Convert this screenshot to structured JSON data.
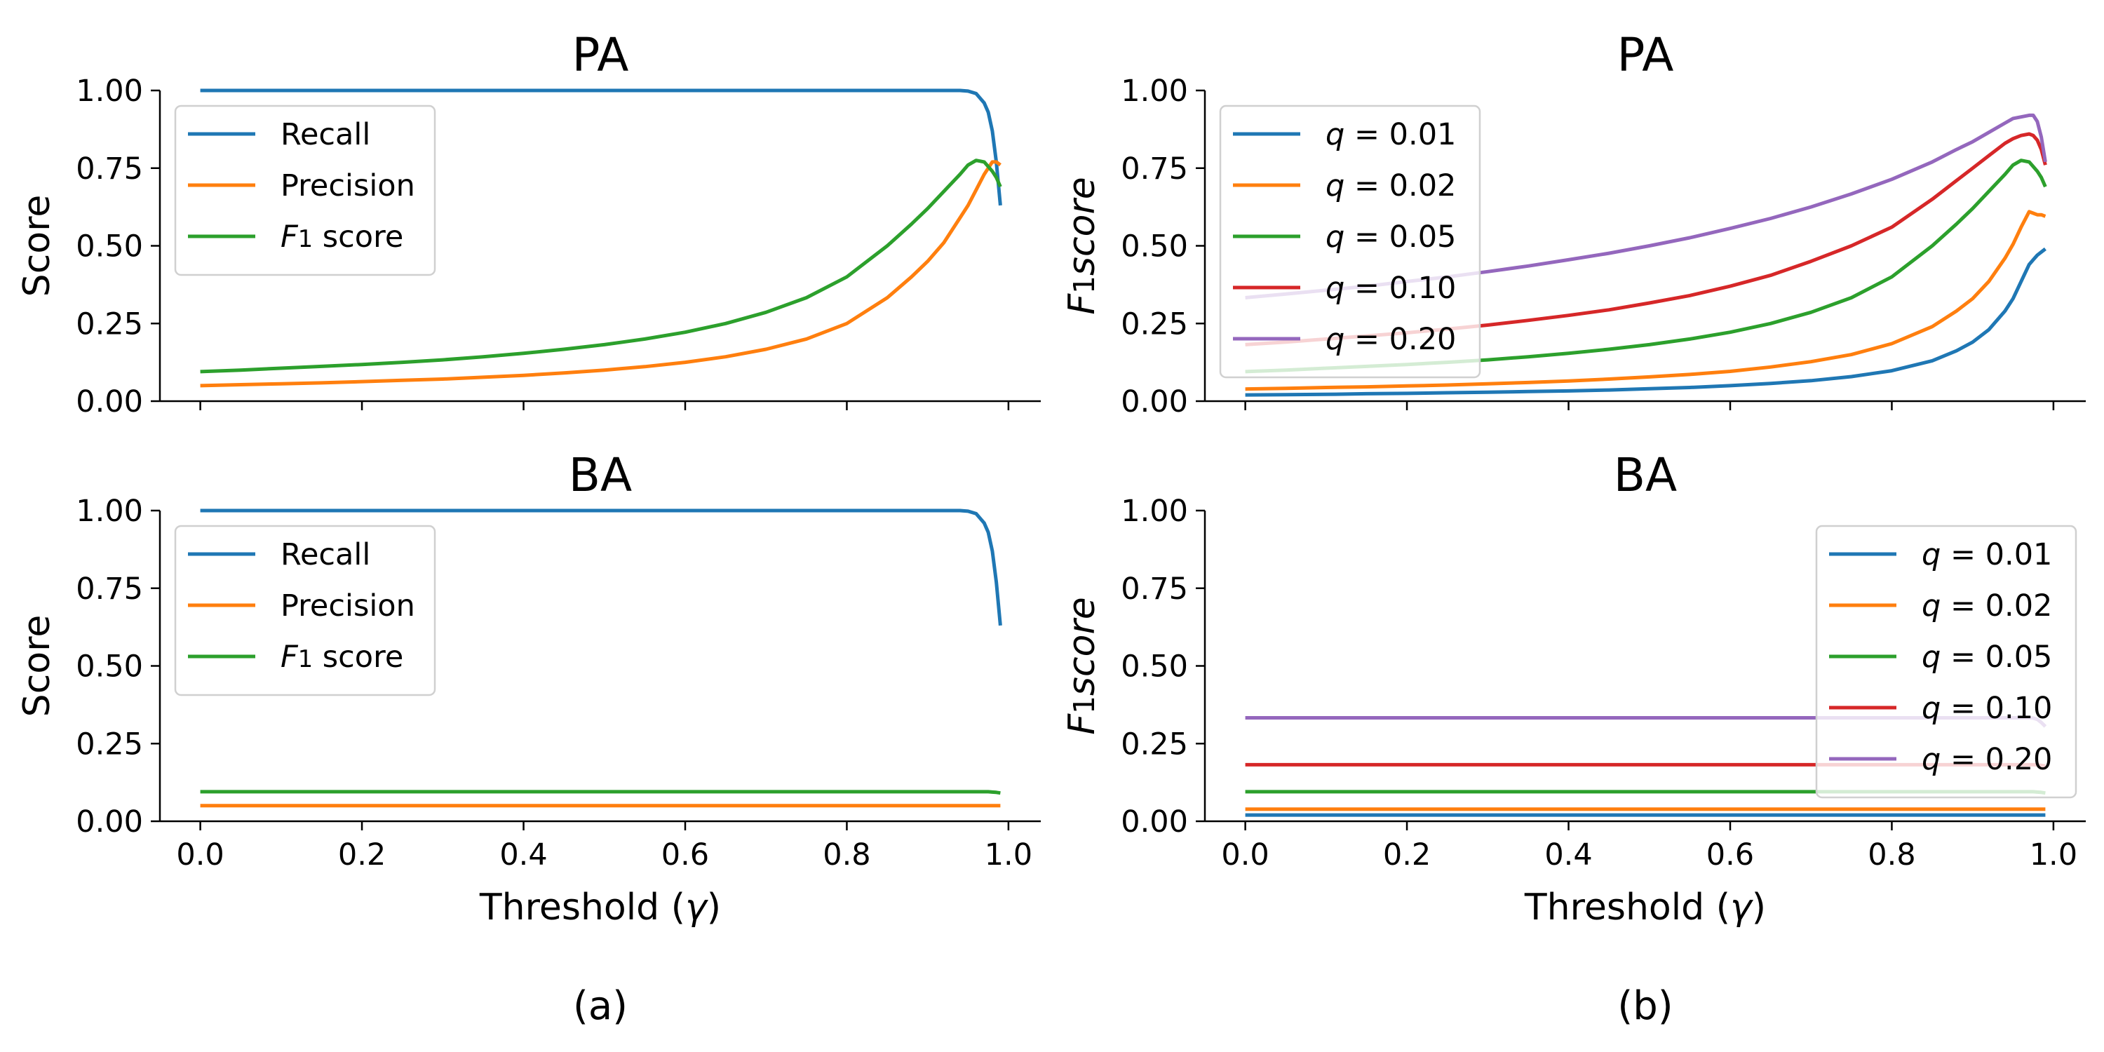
{
  "colors": {
    "c0": "#1f77b4",
    "c1": "#ff7f0e",
    "c2": "#2ca02c",
    "c3": "#d62728",
    "c4": "#9467bd"
  },
  "chart_data": [
    {
      "type": "line",
      "title": "PA",
      "caption": "",
      "xlabel": "",
      "ylabel": "Score",
      "xlim": [
        -0.05,
        1.04
      ],
      "ylim": [
        0,
        1
      ],
      "xticks": [
        0.0,
        0.2,
        0.4,
        0.6,
        0.8,
        1.0
      ],
      "yticks": [
        "0.00",
        "0.25",
        "0.50",
        "0.75",
        "1.00"
      ],
      "show_x_tick_labels": false,
      "legend": "upper-left",
      "x": [
        0.0,
        0.05,
        0.1,
        0.15,
        0.2,
        0.25,
        0.3,
        0.35,
        0.4,
        0.45,
        0.5,
        0.55,
        0.6,
        0.65,
        0.7,
        0.75,
        0.8,
        0.85,
        0.88,
        0.9,
        0.92,
        0.94,
        0.95,
        0.96,
        0.97,
        0.975,
        0.98,
        0.985,
        0.99
      ],
      "series": [
        {
          "name": "Recall",
          "color_key": "c0",
          "values": [
            1,
            1,
            1,
            1,
            1,
            1,
            1,
            1,
            1,
            1,
            1,
            1,
            1,
            1,
            1,
            1,
            1,
            1,
            1,
            1,
            1,
            1,
            0.998,
            0.99,
            0.96,
            0.93,
            0.87,
            0.77,
            0.63
          ]
        },
        {
          "name": "Precision",
          "color_key": "c1",
          "values": [
            0.05,
            0.053,
            0.056,
            0.059,
            0.063,
            0.067,
            0.071,
            0.077,
            0.083,
            0.091,
            0.1,
            0.111,
            0.125,
            0.143,
            0.167,
            0.2,
            0.25,
            0.333,
            0.4,
            0.45,
            0.51,
            0.59,
            0.63,
            0.68,
            0.73,
            0.75,
            0.77,
            0.77,
            0.76
          ]
        },
        {
          "name": "F₁ score",
          "color_key": "c2",
          "values": [
            0.095,
            0.1,
            0.106,
            0.112,
            0.118,
            0.125,
            0.133,
            0.143,
            0.154,
            0.167,
            0.182,
            0.2,
            0.222,
            0.25,
            0.286,
            0.333,
            0.4,
            0.5,
            0.57,
            0.62,
            0.675,
            0.73,
            0.76,
            0.775,
            0.77,
            0.755,
            0.74,
            0.72,
            0.69
          ]
        }
      ]
    },
    {
      "type": "line",
      "title": "PA",
      "caption": "",
      "xlabel": "",
      "ylabel": "F₁score",
      "xlim": [
        -0.05,
        1.04
      ],
      "ylim": [
        0,
        1
      ],
      "xticks": [
        0.0,
        0.2,
        0.4,
        0.6,
        0.8,
        1.0
      ],
      "yticks": [
        "0.00",
        "0.25",
        "0.50",
        "0.75",
        "1.00"
      ],
      "show_x_tick_labels": false,
      "legend": "upper-left",
      "x": [
        0.0,
        0.05,
        0.1,
        0.15,
        0.2,
        0.25,
        0.3,
        0.35,
        0.4,
        0.45,
        0.5,
        0.55,
        0.6,
        0.65,
        0.7,
        0.75,
        0.8,
        0.85,
        0.88,
        0.9,
        0.92,
        0.94,
        0.95,
        0.96,
        0.97,
        0.975,
        0.98,
        0.985,
        0.99
      ],
      "series": [
        {
          "name": "q = 0.01",
          "color_key": "c0",
          "values": [
            0.02,
            0.021,
            0.022,
            0.024,
            0.025,
            0.027,
            0.029,
            0.031,
            0.033,
            0.036,
            0.04,
            0.044,
            0.05,
            0.057,
            0.066,
            0.079,
            0.098,
            0.13,
            0.162,
            0.19,
            0.23,
            0.29,
            0.33,
            0.385,
            0.44,
            0.455,
            0.47,
            0.48,
            0.49
          ]
        },
        {
          "name": "q = 0.02",
          "color_key": "c1",
          "values": [
            0.039,
            0.041,
            0.044,
            0.046,
            0.049,
            0.052,
            0.056,
            0.06,
            0.065,
            0.071,
            0.078,
            0.086,
            0.096,
            0.11,
            0.127,
            0.15,
            0.185,
            0.24,
            0.29,
            0.33,
            0.385,
            0.46,
            0.505,
            0.56,
            0.61,
            0.605,
            0.6,
            0.6,
            0.595
          ]
        },
        {
          "name": "q = 0.05",
          "color_key": "c2",
          "values": [
            0.095,
            0.1,
            0.106,
            0.112,
            0.118,
            0.125,
            0.133,
            0.143,
            0.154,
            0.167,
            0.182,
            0.2,
            0.222,
            0.25,
            0.286,
            0.333,
            0.4,
            0.5,
            0.57,
            0.62,
            0.675,
            0.73,
            0.76,
            0.775,
            0.77,
            0.755,
            0.74,
            0.72,
            0.69
          ]
        },
        {
          "name": "q = 0.10",
          "color_key": "c3",
          "values": [
            0.182,
            0.19,
            0.2,
            0.21,
            0.22,
            0.232,
            0.245,
            0.26,
            0.276,
            0.294,
            0.316,
            0.34,
            0.37,
            0.405,
            0.45,
            0.5,
            0.56,
            0.65,
            0.71,
            0.75,
            0.79,
            0.83,
            0.845,
            0.855,
            0.86,
            0.855,
            0.84,
            0.81,
            0.76
          ]
        },
        {
          "name": "q = 0.20",
          "color_key": "c4",
          "values": [
            0.333,
            0.345,
            0.357,
            0.37,
            0.385,
            0.4,
            0.417,
            0.435,
            0.455,
            0.476,
            0.5,
            0.526,
            0.556,
            0.588,
            0.625,
            0.667,
            0.714,
            0.77,
            0.81,
            0.835,
            0.865,
            0.895,
            0.91,
            0.915,
            0.92,
            0.92,
            0.9,
            0.85,
            0.77
          ]
        }
      ]
    },
    {
      "type": "line",
      "title": "BA",
      "caption": "(a)",
      "xlabel": "Threshold (γ)",
      "ylabel": "Score",
      "xlim": [
        -0.05,
        1.04
      ],
      "ylim": [
        0,
        1
      ],
      "xticks": [
        0.0,
        0.2,
        0.4,
        0.6,
        0.8,
        1.0
      ],
      "yticks": [
        "0.00",
        "0.25",
        "0.50",
        "0.75",
        "1.00"
      ],
      "show_x_tick_labels": true,
      "legend": "upper-left",
      "x": [
        0.0,
        0.05,
        0.1,
        0.15,
        0.2,
        0.25,
        0.3,
        0.35,
        0.4,
        0.45,
        0.5,
        0.55,
        0.6,
        0.65,
        0.7,
        0.75,
        0.8,
        0.85,
        0.88,
        0.9,
        0.92,
        0.94,
        0.95,
        0.96,
        0.97,
        0.975,
        0.98,
        0.985,
        0.99
      ],
      "series": [
        {
          "name": "Recall",
          "color_key": "c0",
          "values": [
            1,
            1,
            1,
            1,
            1,
            1,
            1,
            1,
            1,
            1,
            1,
            1,
            1,
            1,
            1,
            1,
            1,
            1,
            1,
            1,
            1,
            1,
            0.998,
            0.99,
            0.96,
            0.93,
            0.87,
            0.77,
            0.63
          ]
        },
        {
          "name": "Precision",
          "color_key": "c1",
          "values": [
            0.05,
            0.05,
            0.05,
            0.05,
            0.05,
            0.05,
            0.05,
            0.05,
            0.05,
            0.05,
            0.05,
            0.05,
            0.05,
            0.05,
            0.05,
            0.05,
            0.05,
            0.05,
            0.05,
            0.05,
            0.05,
            0.05,
            0.05,
            0.05,
            0.05,
            0.05,
            0.05,
            0.05,
            0.05
          ]
        },
        {
          "name": "F₁ score",
          "color_key": "c2",
          "values": [
            0.095,
            0.095,
            0.095,
            0.095,
            0.095,
            0.095,
            0.095,
            0.095,
            0.095,
            0.095,
            0.095,
            0.095,
            0.095,
            0.095,
            0.095,
            0.095,
            0.095,
            0.095,
            0.095,
            0.095,
            0.095,
            0.095,
            0.095,
            0.095,
            0.095,
            0.095,
            0.094,
            0.093,
            0.091
          ]
        }
      ]
    },
    {
      "type": "line",
      "title": "BA",
      "caption": "(b)",
      "xlabel": "Threshold (γ)",
      "ylabel": "F₁score",
      "xlim": [
        -0.05,
        1.04
      ],
      "ylim": [
        0,
        1
      ],
      "xticks": [
        0.0,
        0.2,
        0.4,
        0.6,
        0.8,
        1.0
      ],
      "yticks": [
        "0.00",
        "0.25",
        "0.50",
        "0.75",
        "1.00"
      ],
      "show_x_tick_labels": true,
      "legend": "upper-right",
      "x": [
        0.0,
        0.05,
        0.1,
        0.15,
        0.2,
        0.25,
        0.3,
        0.35,
        0.4,
        0.45,
        0.5,
        0.55,
        0.6,
        0.65,
        0.7,
        0.75,
        0.8,
        0.85,
        0.88,
        0.9,
        0.92,
        0.94,
        0.95,
        0.96,
        0.97,
        0.975,
        0.98,
        0.985,
        0.99
      ],
      "series": [
        {
          "name": "q = 0.01",
          "color_key": "c0",
          "values": [
            0.02,
            0.02,
            0.02,
            0.02,
            0.02,
            0.02,
            0.02,
            0.02,
            0.02,
            0.02,
            0.02,
            0.02,
            0.02,
            0.02,
            0.02,
            0.02,
            0.02,
            0.02,
            0.02,
            0.02,
            0.02,
            0.02,
            0.02,
            0.02,
            0.02,
            0.02,
            0.02,
            0.02,
            0.02
          ]
        },
        {
          "name": "q = 0.02",
          "color_key": "c1",
          "values": [
            0.039,
            0.039,
            0.039,
            0.039,
            0.039,
            0.039,
            0.039,
            0.039,
            0.039,
            0.039,
            0.039,
            0.039,
            0.039,
            0.039,
            0.039,
            0.039,
            0.039,
            0.039,
            0.039,
            0.039,
            0.039,
            0.039,
            0.039,
            0.039,
            0.039,
            0.039,
            0.039,
            0.039,
            0.039
          ]
        },
        {
          "name": "q = 0.05",
          "color_key": "c2",
          "values": [
            0.095,
            0.095,
            0.095,
            0.095,
            0.095,
            0.095,
            0.095,
            0.095,
            0.095,
            0.095,
            0.095,
            0.095,
            0.095,
            0.095,
            0.095,
            0.095,
            0.095,
            0.095,
            0.095,
            0.095,
            0.095,
            0.095,
            0.095,
            0.095,
            0.095,
            0.095,
            0.094,
            0.093,
            0.091
          ]
        },
        {
          "name": "q = 0.10",
          "color_key": "c3",
          "values": [
            0.182,
            0.182,
            0.182,
            0.182,
            0.182,
            0.182,
            0.182,
            0.182,
            0.182,
            0.182,
            0.182,
            0.182,
            0.182,
            0.182,
            0.182,
            0.182,
            0.182,
            0.182,
            0.182,
            0.182,
            0.182,
            0.182,
            0.182,
            0.182,
            0.182,
            0.182,
            0.181,
            0.18,
            0.178
          ]
        },
        {
          "name": "q = 0.20",
          "color_key": "c4",
          "values": [
            0.333,
            0.333,
            0.333,
            0.333,
            0.333,
            0.333,
            0.333,
            0.333,
            0.333,
            0.333,
            0.333,
            0.333,
            0.333,
            0.333,
            0.333,
            0.333,
            0.333,
            0.333,
            0.333,
            0.333,
            0.333,
            0.333,
            0.333,
            0.333,
            0.333,
            0.332,
            0.328,
            0.318,
            0.305
          ]
        }
      ]
    }
  ]
}
